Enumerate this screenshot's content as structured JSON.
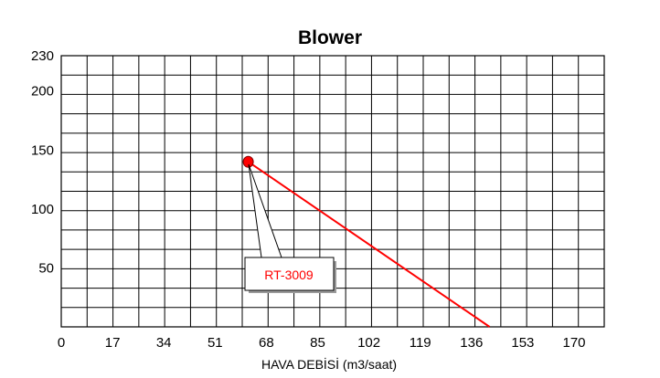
{
  "chart_data": {
    "type": "line",
    "title": "Blower",
    "xlabel": "HAVA DEBİSİ (m3/saat)",
    "ylabel": "",
    "xlim": [
      0,
      180
    ],
    "ylim": [
      0,
      230
    ],
    "x_ticks": [
      "0",
      "17",
      "34",
      "51",
      "68",
      "85",
      "102",
      "119",
      "136",
      "153",
      "170"
    ],
    "x_tick_values": [
      0,
      17,
      34,
      51,
      68,
      85,
      102,
      119,
      136,
      153,
      170
    ],
    "y_ticks": [
      "50",
      "100",
      "150",
      "200",
      "230"
    ],
    "y_tick_values": [
      50,
      100,
      150,
      200,
      230
    ],
    "grid": true,
    "grid_columns": 21,
    "grid_rows": 14,
    "series": [
      {
        "color": "#ff0000",
        "x": [
          62,
          142
        ],
        "y": [
          140,
          0
        ]
      }
    ],
    "marker": {
      "x": 62,
      "y": 140,
      "color": "#ff0000"
    },
    "annotation": {
      "text": "RT-3009",
      "color": "#ff0000"
    }
  }
}
